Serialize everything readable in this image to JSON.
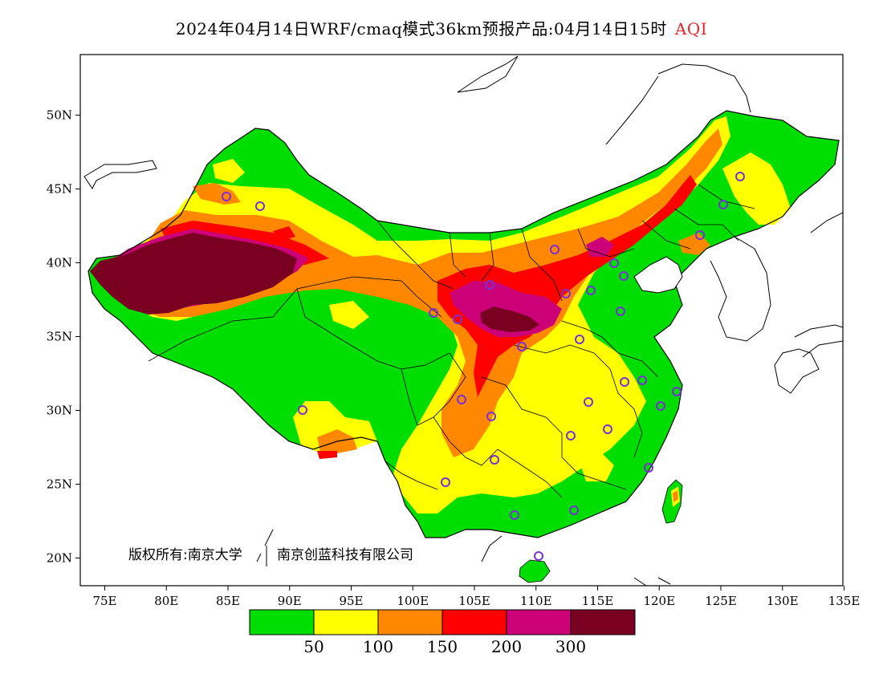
{
  "title": {
    "main": "2024年04月14日WRF/cmaq模式36km预报产品:04月14日15时",
    "variable": "AQI",
    "variable_color": "#e8242a"
  },
  "axes": {
    "x_ticks": [
      "75E",
      "80E",
      "85E",
      "90E",
      "95E",
      "100E",
      "105E",
      "110E",
      "115E",
      "120E",
      "125E",
      "130E",
      "135E"
    ],
    "y_ticks": [
      "50N",
      "45N",
      "40N",
      "35N",
      "30N",
      "25N",
      "20N"
    ]
  },
  "legend": {
    "colors": [
      "#00dd00",
      "#ffff00",
      "#ff8800",
      "#ff0000",
      "#cc0077",
      "#7a0021"
    ],
    "labels": [
      "50",
      "100",
      "150",
      "200",
      "300"
    ]
  },
  "copyright": {
    "part1": "版权所有:南京大学",
    "part2": "南京创蓝科技有限公司"
  },
  "land_colors": {
    "background": "#ffffff",
    "border": "#000000"
  }
}
